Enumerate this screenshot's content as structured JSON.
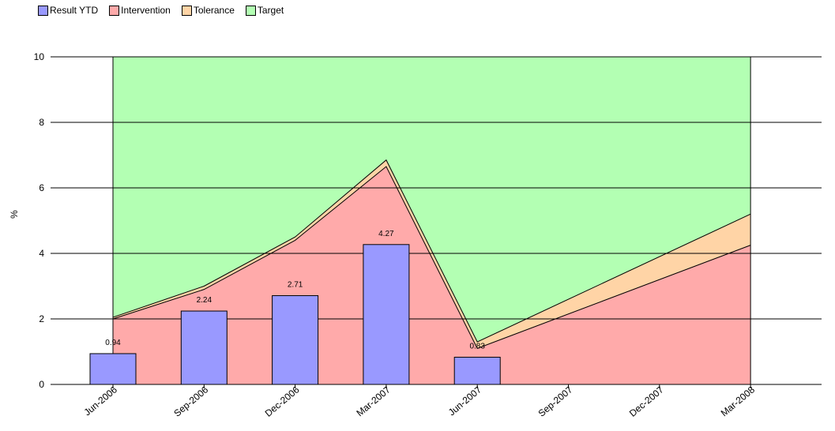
{
  "chart_data": {
    "type": "bar",
    "categories": [
      "Jun-2006",
      "Sep-2006",
      "Dec-2006",
      "Mar-2007",
      "Jun-2007",
      "Sep-2007",
      "Dec-2007",
      "Mar-2008"
    ],
    "ylabel": "%",
    "ylim": [
      0,
      10
    ],
    "yticks": [
      0,
      2,
      4,
      6,
      8,
      10
    ],
    "grid": false,
    "legend_position": "top-left",
    "legend": [
      {
        "name": "Result YTD",
        "color": "#9999ff"
      },
      {
        "name": "Intervention",
        "color": "#ffaaaa"
      },
      {
        "name": "Tolerance",
        "color": "#ffd4a6"
      },
      {
        "name": "Target",
        "color": "#b3ffb3"
      }
    ],
    "series": [
      {
        "name": "Result YTD",
        "kind": "bar",
        "color": "#9999ff",
        "values": [
          0.94,
          2.24,
          2.71,
          4.27,
          0.83,
          null,
          null,
          null
        ],
        "labels": [
          "0.94",
          "2.24",
          "2.71",
          "4.27",
          "0.83",
          "",
          "",
          ""
        ]
      },
      {
        "name": "Intervention",
        "kind": "area",
        "color": "#ffaaaa",
        "values": [
          2.0,
          2.9,
          4.4,
          6.65,
          1.1,
          null,
          null,
          4.25
        ]
      },
      {
        "name": "Tolerance",
        "kind": "area",
        "color": "#ffd4a6",
        "values": [
          2.05,
          3.0,
          4.5,
          6.85,
          1.3,
          null,
          null,
          5.2
        ]
      },
      {
        "name": "Target",
        "kind": "area",
        "color": "#b3ffb3",
        "values": [
          10,
          10,
          10,
          10,
          10,
          null,
          null,
          10
        ]
      }
    ]
  }
}
